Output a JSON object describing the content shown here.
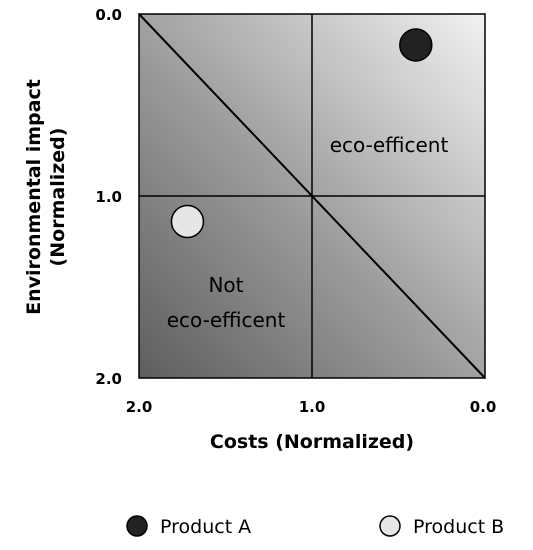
{
  "chart_data": {
    "type": "scatter",
    "xlabel": "Costs (Normalized)",
    "ylabel_lines": [
      "Environmental impact",
      "(Normalized)"
    ],
    "xlim": [
      2.0,
      0.0
    ],
    "ylim": [
      0.0,
      2.0
    ],
    "x_ticks": [
      "2.0",
      "1.0",
      "0.0"
    ],
    "y_ticks": [
      "0.0",
      "1.0",
      "2.0"
    ],
    "regions": {
      "eco_efficient": "eco-efficent",
      "not_eco_efficient": [
        "Not",
        "eco-efficent"
      ]
    },
    "series": [
      {
        "name": "Product A",
        "x": 0.4,
        "y": 0.17,
        "color": "#222222"
      },
      {
        "name": "Product B",
        "x": 1.72,
        "y": 1.14,
        "color": "#e6e6e6"
      }
    ],
    "legend_position": "bottom",
    "grid": false
  }
}
